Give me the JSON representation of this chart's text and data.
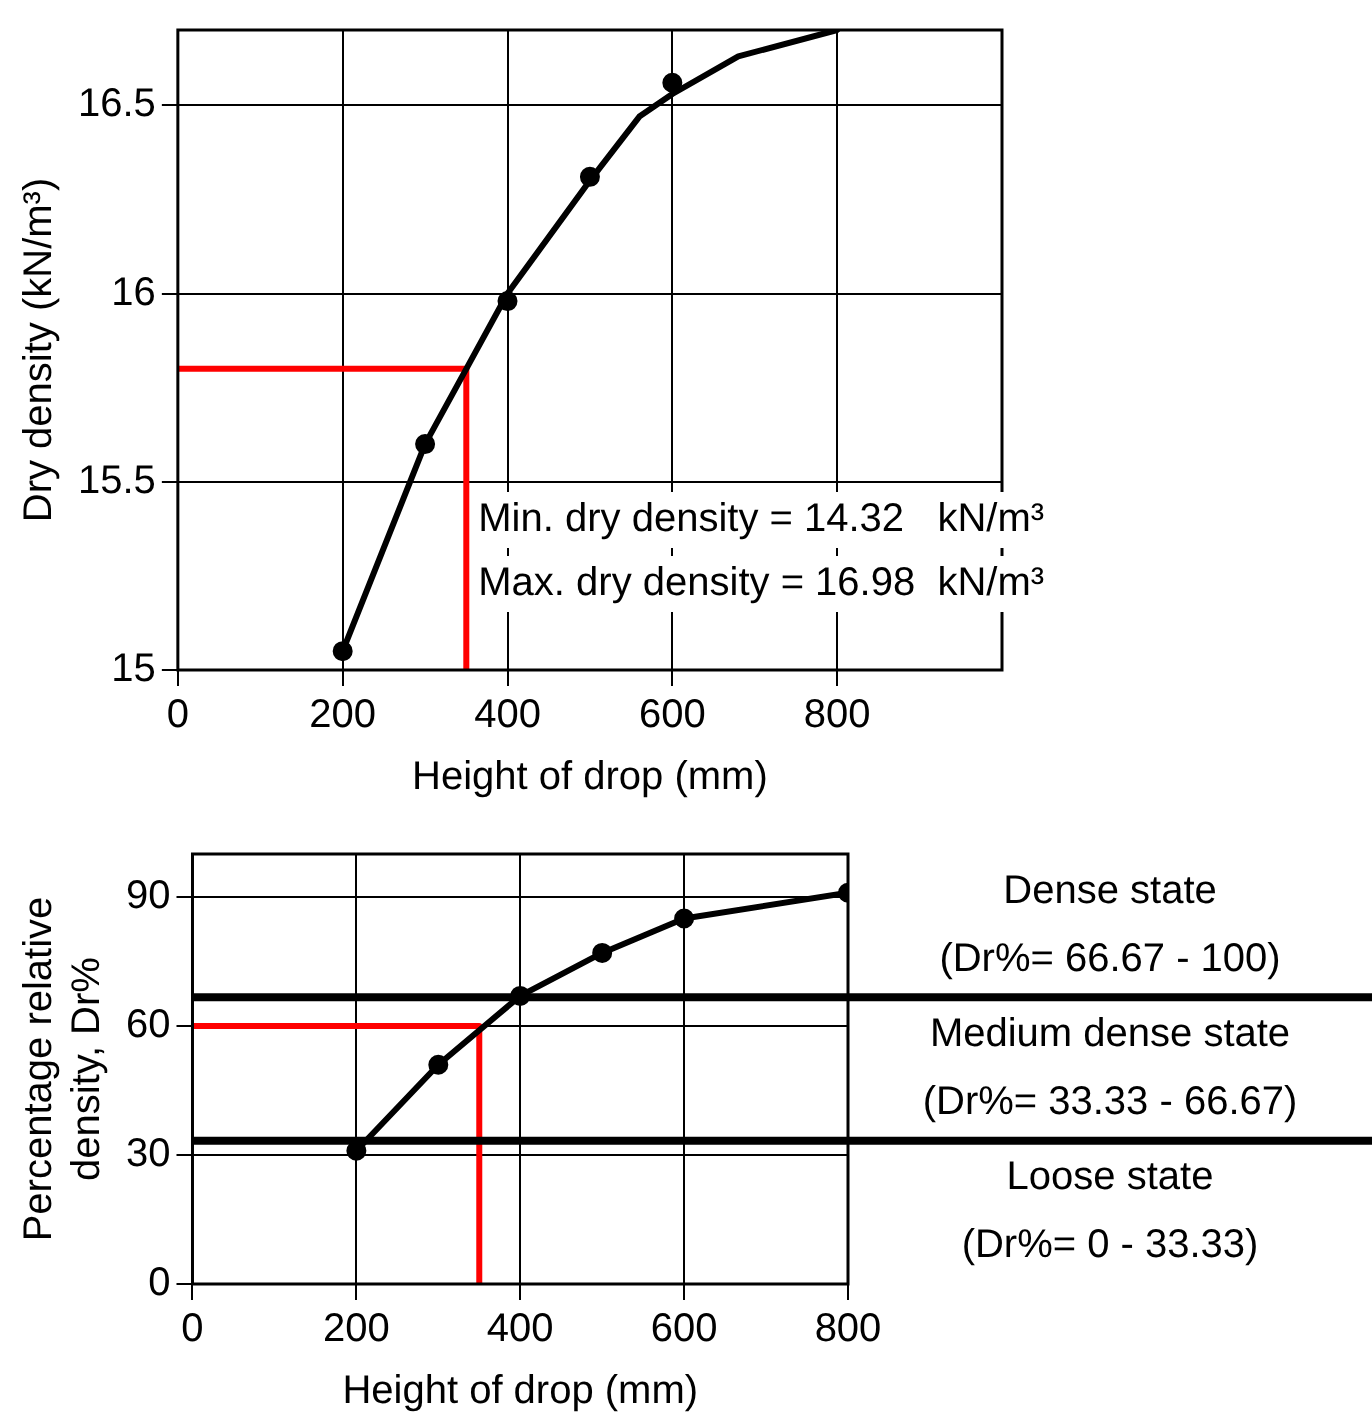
{
  "chart_data": [
    {
      "type": "line",
      "xlabel": "Height of drop (mm)",
      "ylabel": "Dry density (kN/m³)",
      "xlim": [
        0,
        1000
      ],
      "xticks": [
        0,
        200,
        400,
        600,
        800
      ],
      "ylim": [
        15,
        16.7
      ],
      "yticks": [
        15,
        15.5,
        16,
        16.5
      ],
      "grid": true,
      "legend": false,
      "series": [
        {
          "type": "line",
          "color": "#000000",
          "marker": "none",
          "x": [
            200,
            300,
            350,
            400,
            500,
            560,
            600,
            680,
            800
          ],
          "values": [
            15.05,
            15.6,
            15.8,
            16.0,
            16.3,
            16.47,
            16.53,
            16.63,
            16.7
          ]
        },
        {
          "type": "scatter",
          "color": "#000000",
          "marker": "circle",
          "x": [
            200,
            300,
            400,
            500,
            600
          ],
          "values": [
            15.05,
            15.6,
            15.98,
            16.31,
            16.56
          ]
        },
        {
          "type": "line",
          "color": "#ff0000",
          "marker": "none",
          "x": [
            0,
            350,
            350
          ],
          "values": [
            15.8,
            15.8,
            15
          ]
        }
      ],
      "annotations": [
        "Min. dry density = 14.32   kN/m³",
        "Max. dry density = 16.98  kN/m³"
      ]
    },
    {
      "type": "line",
      "xlabel": "Height of drop (mm)",
      "ylabel": "Percentage relative\ndensity, Dr%",
      "xlim": [
        0,
        800
      ],
      "xticks": [
        0,
        200,
        400,
        600,
        800
      ],
      "ylim": [
        0,
        100
      ],
      "yticks": [
        0,
        30,
        60,
        90
      ],
      "grid": true,
      "legend": false,
      "series": [
        {
          "type": "line",
          "color": "#000000",
          "marker": "circle",
          "x": [
            200,
            300,
            400,
            500,
            600,
            800
          ],
          "values": [
            31,
            51,
            67,
            77,
            85,
            91
          ]
        },
        {
          "type": "line",
          "color": "#ff0000",
          "marker": "none",
          "x": [
            0,
            350,
            350
          ],
          "values": [
            60,
            60,
            0
          ]
        }
      ],
      "ref_lines": [
        {
          "axis": "y",
          "value": 66.67,
          "color": "#000000"
        },
        {
          "axis": "y",
          "value": 33.33,
          "color": "#000000"
        }
      ],
      "annotations": [
        "Dense state\n(Dr%= 66.67 - 100)",
        "Medium dense state\n(Dr%= 33.33 - 66.67)",
        "Loose state\n(Dr%= 0 - 33.33)"
      ]
    }
  ]
}
